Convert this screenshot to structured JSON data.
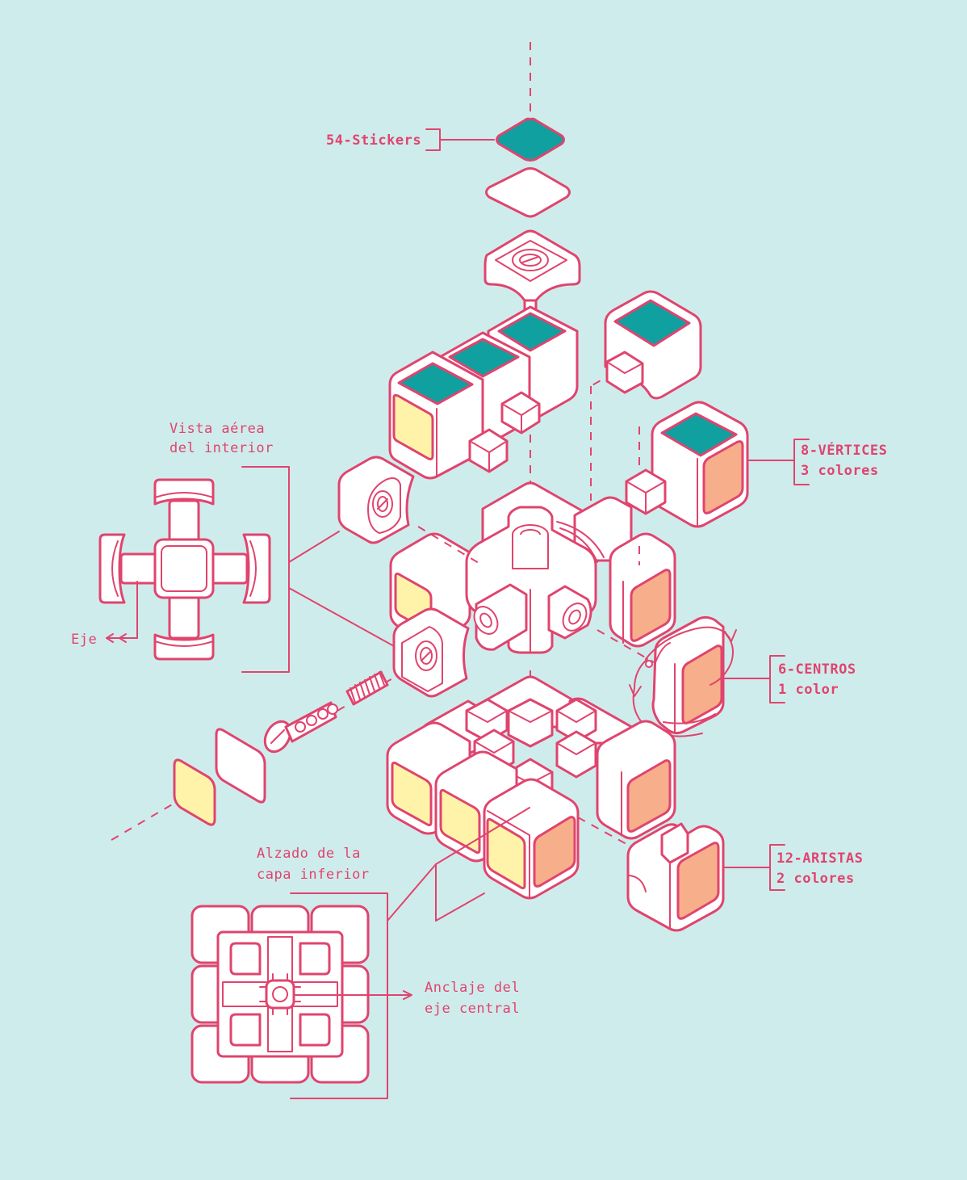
{
  "colors": {
    "background": "#cfecec",
    "line": "#e0446e",
    "piece": "#ffffff",
    "sticker_teal": "#10a0a0",
    "sticker_yellow": "#fef3a8",
    "sticker_orange": "#f7ae8a"
  },
  "labels": {
    "stickers": "54-Stickers",
    "vista_line1": "Vista aérea",
    "vista_line2": "del interior",
    "eje": "Eje",
    "vertices_line1": "8-VÉRTICES",
    "vertices_line2": "3 colores",
    "centros_line1": "6-CENTROS",
    "centros_line2": "1 color",
    "aristas_line1": "12-ARISTAS",
    "aristas_line2": "2 colores",
    "alzado_line1": "Alzado de la",
    "alzado_line2": "capa inferior",
    "anclaje_line1": "Anclaje del",
    "anclaje_line2": "eje central"
  }
}
